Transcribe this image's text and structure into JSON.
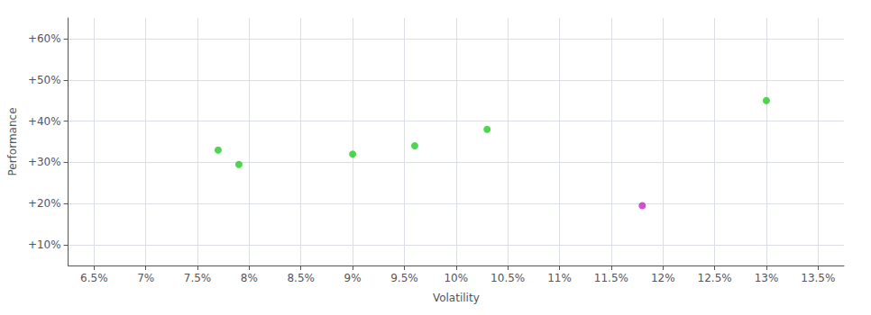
{
  "chart_data": {
    "type": "scatter",
    "xlabel": "Volatility",
    "ylabel": "Performance",
    "series": [
      {
        "color": "#22cc22",
        "x": [
          7.7,
          7.9,
          9.0,
          9.6,
          10.3,
          13.0
        ],
        "values": [
          33.0,
          29.5,
          32.0,
          34.0,
          38.0,
          45.0
        ]
      },
      {
        "color": "#cc22cc",
        "x": [
          11.8
        ],
        "values": [
          19.5
        ]
      }
    ],
    "xlim": [
      6.25,
      13.75
    ],
    "xticks": [
      {
        "value": 6.5,
        "label": "6.5%"
      },
      {
        "value": 7.0,
        "label": "7%"
      },
      {
        "value": 7.5,
        "label": "7.5%"
      },
      {
        "value": 8.0,
        "label": "8%"
      },
      {
        "value": 8.5,
        "label": "8.5%"
      },
      {
        "value": 9.0,
        "label": "9%"
      },
      {
        "value": 9.5,
        "label": "9.5%"
      },
      {
        "value": 10.0,
        "label": "10%"
      },
      {
        "value": 10.5,
        "label": "10.5%"
      },
      {
        "value": 11.0,
        "label": "11%"
      },
      {
        "value": 11.5,
        "label": "11.5%"
      },
      {
        "value": 12.0,
        "label": "12%"
      },
      {
        "value": 12.5,
        "label": "12.5%"
      },
      {
        "value": 13.0,
        "label": "13%"
      },
      {
        "value": 13.5,
        "label": "13.5%"
      }
    ],
    "ylim": [
      5,
      65
    ],
    "yticks": [
      {
        "value": 10,
        "label": "+10%"
      },
      {
        "value": 20,
        "label": "+20%"
      },
      {
        "value": 30,
        "label": "+30%"
      },
      {
        "value": 40,
        "label": "+40%"
      },
      {
        "value": 50,
        "label": "+50%"
      },
      {
        "value": 60,
        "label": "+60%"
      }
    ],
    "grid": true
  }
}
